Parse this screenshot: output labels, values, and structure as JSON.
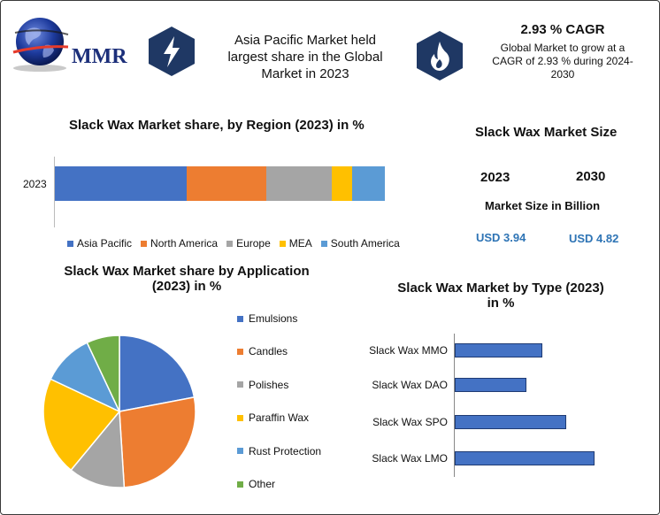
{
  "header": {
    "logo_text": "MMR",
    "headline": [
      "Asia Pacific Market held",
      "largest share in the Global",
      "Market in 2023"
    ],
    "cagr_title": "2.93 % CAGR",
    "cagr_desc": [
      "Global Market to grow at a",
      "CAGR of 2.93 % during 2024-",
      "2030"
    ],
    "icons": [
      "globe-icon",
      "lightning-icon",
      "flame-icon"
    ]
  },
  "region": {
    "title": "Slack Wax Market share, by Region (2023) in %",
    "year_label": "2023"
  },
  "market_size": {
    "title": "Slack Wax Market Size",
    "year1": "2023",
    "year2": "2030",
    "subtitle": "Market Size in Billion",
    "value1": "USD 3.94",
    "value2": "USD 4.82"
  },
  "application": {
    "title_lines": [
      "Slack Wax Market share by Application",
      "(2023) in %"
    ]
  },
  "type_section": {
    "title_lines": [
      "Slack Wax Market by Type (2023)",
      "in %"
    ]
  },
  "colors": {
    "blue": "#4472c4",
    "orange": "#ed7d31",
    "gray": "#a5a5a5",
    "yellow": "#ffc000",
    "lightblue": "#5b9bd5",
    "green": "#70ad47",
    "navy": "#1c2f7a"
  },
  "chart_data": [
    {
      "type": "bar",
      "orientation": "horizontal-stacked",
      "title": "Slack Wax Market share, by Region (2023) in %",
      "categories": [
        "2023"
      ],
      "series": [
        {
          "name": "Asia Pacific",
          "values": [
            40
          ],
          "color": "#4472c4"
        },
        {
          "name": "North America",
          "values": [
            24
          ],
          "color": "#ed7d31"
        },
        {
          "name": "Europe",
          "values": [
            20
          ],
          "color": "#a5a5a5"
        },
        {
          "name": "MEA",
          "values": [
            6
          ],
          "color": "#ffc000"
        },
        {
          "name": "South America",
          "values": [
            10
          ],
          "color": "#5b9bd5"
        }
      ],
      "legend": "bottom"
    },
    {
      "type": "pie",
      "title": "Slack Wax Market share by Application (2023) in %",
      "slices": [
        {
          "name": "Emulsions",
          "value": 22,
          "color": "#4472c4"
        },
        {
          "name": "Candles",
          "value": 27,
          "color": "#ed7d31"
        },
        {
          "name": "Polishes",
          "value": 12,
          "color": "#a5a5a5"
        },
        {
          "name": "Paraffin Wax",
          "value": 21,
          "color": "#ffc000"
        },
        {
          "name": "Rust Protection",
          "value": 11,
          "color": "#5b9bd5"
        },
        {
          "name": "Other",
          "value": 7,
          "color": "#70ad47"
        }
      ],
      "legend": "right"
    },
    {
      "type": "bar",
      "orientation": "horizontal",
      "title": "Slack Wax Market by Type (2023) in %",
      "categories": [
        "Slack Wax MMO",
        "Slack Wax DAO",
        "Slack Wax SPO",
        "Slack Wax LMO"
      ],
      "values": [
        22,
        18,
        28,
        35
      ],
      "xlim": [
        0,
        40
      ],
      "color": "#4472c4"
    }
  ]
}
